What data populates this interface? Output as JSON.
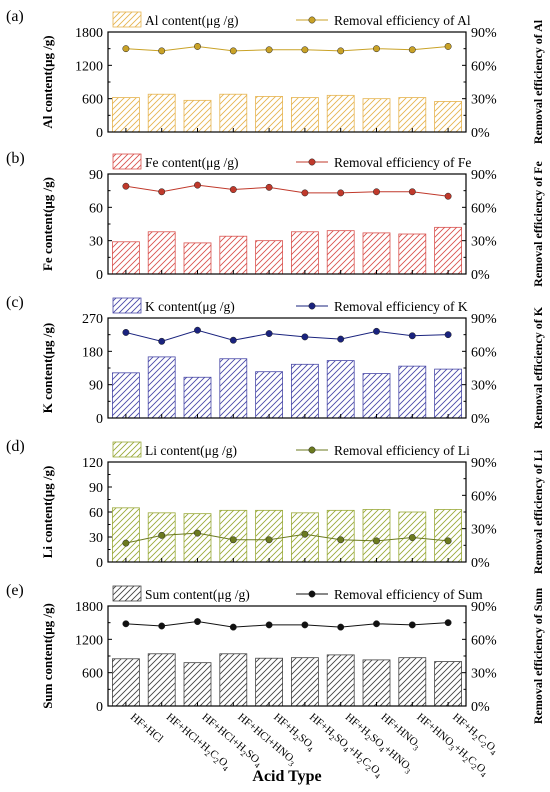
{
  "xlabel": "Acid Type",
  "categories": [
    {
      "parts": [
        [
          "HF+HCl",
          ""
        ]
      ]
    },
    {
      "parts": [
        [
          "HF+HCl+H",
          ""
        ],
        [
          "2",
          "sub"
        ],
        [
          "C",
          ""
        ],
        [
          "2",
          "sub"
        ],
        [
          "O",
          ""
        ],
        [
          "4",
          "sub"
        ]
      ]
    },
    {
      "parts": [
        [
          "HF+HCl+H",
          ""
        ],
        [
          "2",
          "sub"
        ],
        [
          "SO",
          ""
        ],
        [
          "4",
          "sub"
        ]
      ]
    },
    {
      "parts": [
        [
          "HF+HCl+HNO",
          ""
        ],
        [
          "3",
          "sub"
        ]
      ]
    },
    {
      "parts": [
        [
          "HF+H",
          ""
        ],
        [
          "2",
          "sub"
        ],
        [
          "SO",
          ""
        ],
        [
          "4",
          "sub"
        ]
      ]
    },
    {
      "parts": [
        [
          "HF+H",
          ""
        ],
        [
          "2",
          "sub"
        ],
        [
          "SO",
          ""
        ],
        [
          "4",
          "sub"
        ],
        [
          "+H",
          ""
        ],
        [
          "2",
          "sub"
        ],
        [
          "C",
          ""
        ],
        [
          "2",
          "sub"
        ],
        [
          "O",
          ""
        ],
        [
          "4",
          "sub"
        ]
      ]
    },
    {
      "parts": [
        [
          "HF+H",
          ""
        ],
        [
          "2",
          "sub"
        ],
        [
          "SO",
          ""
        ],
        [
          "4",
          "sub"
        ],
        [
          "+HNO",
          ""
        ],
        [
          "3",
          "sub"
        ]
      ]
    },
    {
      "parts": [
        [
          "HF+HNO",
          ""
        ],
        [
          "3",
          "sub"
        ]
      ]
    },
    {
      "parts": [
        [
          "HF+HNO",
          ""
        ],
        [
          "3",
          "sub"
        ],
        [
          "+H",
          ""
        ],
        [
          "2",
          "sub"
        ],
        [
          "C",
          ""
        ],
        [
          "2",
          "sub"
        ],
        [
          "O",
          ""
        ],
        [
          "4",
          "sub"
        ]
      ]
    },
    {
      "parts": [
        [
          "HF+H",
          ""
        ],
        [
          "2",
          "sub"
        ],
        [
          "C",
          ""
        ],
        [
          "2",
          "sub"
        ],
        [
          "O",
          ""
        ],
        [
          "4",
          "sub"
        ]
      ]
    }
  ],
  "chart_data": [
    {
      "type": "bar+line",
      "panel_label": "(a)",
      "ylabel": "Al content(μg /g)",
      "y2label": "Removal efficiency of Al",
      "ylim": [
        0,
        1800
      ],
      "yticks": [
        "0",
        "600",
        "1200",
        "1800"
      ],
      "y2lim": [
        0,
        90
      ],
      "y2ticks": [
        "0%",
        "30%",
        "60%",
        "90%"
      ],
      "bar_legend": "Al content(μg /g)",
      "line_legend": "Removal efficiency of Al",
      "bar_color": "#e6b450",
      "line_color": "#c9a227",
      "bar_values": [
        620,
        680,
        570,
        680,
        640,
        620,
        660,
        600,
        620,
        550
      ],
      "line_values": [
        75,
        73,
        77,
        73,
        74,
        74,
        73,
        75,
        74,
        77
      ]
    },
    {
      "type": "bar+line",
      "panel_label": "(b)",
      "ylabel": "Fe content(μg /g)",
      "y2label": "Removal efficiency of Fe",
      "ylim": [
        0,
        90
      ],
      "yticks": [
        "0",
        "30",
        "60",
        "90"
      ],
      "y2lim": [
        0,
        90
      ],
      "y2ticks": [
        "0%",
        "30%",
        "60%",
        "90%"
      ],
      "bar_legend": "Fe content(μg /g)",
      "line_legend": "Removal efficiency of Fe",
      "bar_color": "#d9534f",
      "line_color": "#c0392b",
      "bar_values": [
        29,
        38,
        28,
        34,
        30,
        38,
        39,
        37,
        36,
        42
      ],
      "line_values": [
        79,
        74,
        80,
        76,
        78,
        73,
        73,
        74,
        74,
        70
      ]
    },
    {
      "type": "bar+line",
      "panel_label": "(c)",
      "ylabel": "K content(μg /g)",
      "y2label": "Removal efficiency of K",
      "ylim": [
        0,
        270
      ],
      "yticks": [
        "0",
        "90",
        "180",
        "270"
      ],
      "y2lim": [
        0,
        90
      ],
      "y2ticks": [
        "0%",
        "30%",
        "60%",
        "90%"
      ],
      "bar_legend": "K content(μg /g)",
      "line_legend": "Removal efficiency of K",
      "bar_color": "#4a4aa8",
      "line_color": "#1a237e",
      "bar_values": [
        122,
        165,
        110,
        160,
        125,
        145,
        155,
        120,
        140,
        132
      ],
      "line_values": [
        77,
        69,
        79,
        70,
        76,
        73,
        71,
        78,
        74,
        75
      ]
    },
    {
      "type": "bar+line",
      "panel_label": "(d)",
      "ylabel": "Li content(μg /g)",
      "y2label": "Removal efficiency of Li",
      "ylim": [
        0,
        120
      ],
      "yticks": [
        "0",
        "30",
        "60",
        "90",
        "120"
      ],
      "y2lim": [
        0,
        90
      ],
      "y2ticks": [
        "0%",
        "30%",
        "60%",
        "90%"
      ],
      "bar_legend": "Li content(μg /g)",
      "line_legend": "Removal efficiency of Li",
      "bar_color": "#9aaa3a",
      "line_color": "#6b7a1f",
      "bar_values": [
        65,
        59,
        58,
        62,
        62,
        59,
        62,
        63,
        60,
        63
      ],
      "line_values": [
        17,
        24,
        26,
        20,
        20,
        25,
        20,
        19,
        22,
        19
      ]
    },
    {
      "type": "bar+line",
      "panel_label": "(e)",
      "ylabel": "Sum content(μg /g)",
      "y2label": "Removal efficiency of Sum",
      "ylim": [
        0,
        1800
      ],
      "yticks": [
        "0",
        "600",
        "1200",
        "1800"
      ],
      "y2lim": [
        0,
        90
      ],
      "y2ticks": [
        "0%",
        "30%",
        "60%",
        "90%"
      ],
      "bar_legend": "Sum content(μg /g)",
      "line_legend": "Removal efficiency of Sum",
      "bar_color": "#444444",
      "line_color": "#111111",
      "bar_values": [
        850,
        940,
        780,
        940,
        860,
        870,
        920,
        830,
        870,
        800
      ],
      "line_values": [
        74,
        72,
        76,
        71,
        73,
        73,
        71,
        74,
        73,
        75
      ]
    }
  ]
}
